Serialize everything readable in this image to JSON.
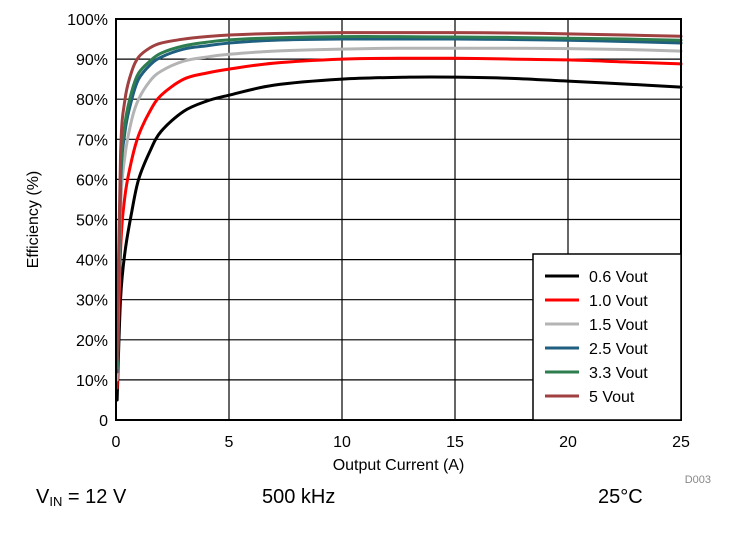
{
  "chart_data": {
    "type": "line",
    "title": "",
    "xlabel": "Output Current (A)",
    "ylabel": "Efficiency (%)",
    "xlim": [
      0,
      25
    ],
    "ylim": [
      0,
      100
    ],
    "x_ticks": [
      0,
      5,
      10,
      15,
      20,
      25
    ],
    "y_ticks": [
      0,
      10,
      20,
      30,
      40,
      50,
      60,
      70,
      80,
      90,
      100
    ],
    "y_tick_labels": [
      "0",
      "10%",
      "20%",
      "30%",
      "40%",
      "50%",
      "60%",
      "70%",
      "80%",
      "90%",
      "100%"
    ],
    "grid": true,
    "legend_position": "bottom-right",
    "figure_code": "D003",
    "series": [
      {
        "name": "0.6 Vout",
        "color": "#000000",
        "x": [
          0.05,
          0.2,
          0.4,
          0.7,
          1.0,
          1.5,
          2.0,
          3.0,
          4.0,
          5.0,
          7.0,
          10.0,
          13.0,
          15.0,
          17.5,
          20.0,
          22.5,
          25.0
        ],
        "y": [
          5,
          30,
          42,
          52,
          60,
          67,
          72,
          77,
          79.5,
          81,
          83.5,
          85,
          85.5,
          85.5,
          85.2,
          84.5,
          83.8,
          83
        ]
      },
      {
        "name": "1.0 Vout",
        "color": "#ff0000",
        "x": [
          0.05,
          0.2,
          0.4,
          0.7,
          1.0,
          1.5,
          2.0,
          3.0,
          4.0,
          5.0,
          7.0,
          10.0,
          12.5,
          15.0,
          17.5,
          20.0,
          22.5,
          25.0
        ],
        "y": [
          8,
          42,
          56,
          65,
          71,
          77,
          81,
          85,
          86.5,
          87.5,
          89,
          90,
          90.2,
          90.2,
          90,
          89.8,
          89.3,
          88.8
        ]
      },
      {
        "name": "1.5 Vout",
        "color": "#b4b4b4",
        "x": [
          0.05,
          0.2,
          0.4,
          0.7,
          1.0,
          1.5,
          2.0,
          3.0,
          4.0,
          5.0,
          7.0,
          10.0,
          12.5,
          15.0,
          17.5,
          20.0,
          22.5,
          25.0
        ],
        "y": [
          10,
          52,
          66,
          75,
          80,
          84.5,
          87,
          89.5,
          90.5,
          91.2,
          92,
          92.5,
          92.7,
          92.7,
          92.7,
          92.6,
          92.4,
          92
        ]
      },
      {
        "name": "2.5 Vout",
        "color": "#1f5f7f",
        "x": [
          0.05,
          0.2,
          0.4,
          0.7,
          1.0,
          1.5,
          2.0,
          3.0,
          4.0,
          5.0,
          7.0,
          10.0,
          12.5,
          15.0,
          17.5,
          20.0,
          22.5,
          25.0
        ],
        "y": [
          12,
          58,
          72,
          80,
          85,
          88.5,
          90.5,
          92.5,
          93.3,
          94,
          94.7,
          95,
          95,
          95,
          94.9,
          94.7,
          94.4,
          94
        ]
      },
      {
        "name": "3.3 Vout",
        "color": "#2e7d4f",
        "x": [
          0.05,
          0.2,
          0.4,
          0.7,
          1.0,
          1.5,
          2.0,
          3.0,
          4.0,
          5.0,
          7.0,
          10.0,
          12.5,
          15.0,
          17.5,
          20.0,
          22.5,
          25.0
        ],
        "y": [
          13,
          60,
          74,
          82,
          86.5,
          89.5,
          91.5,
          93.3,
          94.2,
          94.8,
          95.3,
          95.6,
          95.6,
          95.5,
          95.4,
          95.2,
          95,
          94.7
        ]
      },
      {
        "name": "5 Vout",
        "color": "#a04040",
        "x": [
          0.05,
          0.2,
          0.4,
          0.7,
          1.0,
          1.5,
          2.0,
          3.0,
          4.0,
          5.0,
          7.0,
          10.0,
          12.5,
          15.0,
          17.5,
          20.0,
          22.5,
          25.0
        ],
        "y": [
          15,
          66,
          80,
          87,
          90.5,
          92.8,
          94,
          95,
          95.6,
          96,
          96.4,
          96.6,
          96.6,
          96.6,
          96.5,
          96.3,
          96,
          95.7
        ]
      }
    ]
  },
  "conditions": {
    "vin_label": "V",
    "vin_sub": "IN",
    "vin_value": " = 12 V",
    "frequency": "500 kHz",
    "temperature": "25°C"
  }
}
